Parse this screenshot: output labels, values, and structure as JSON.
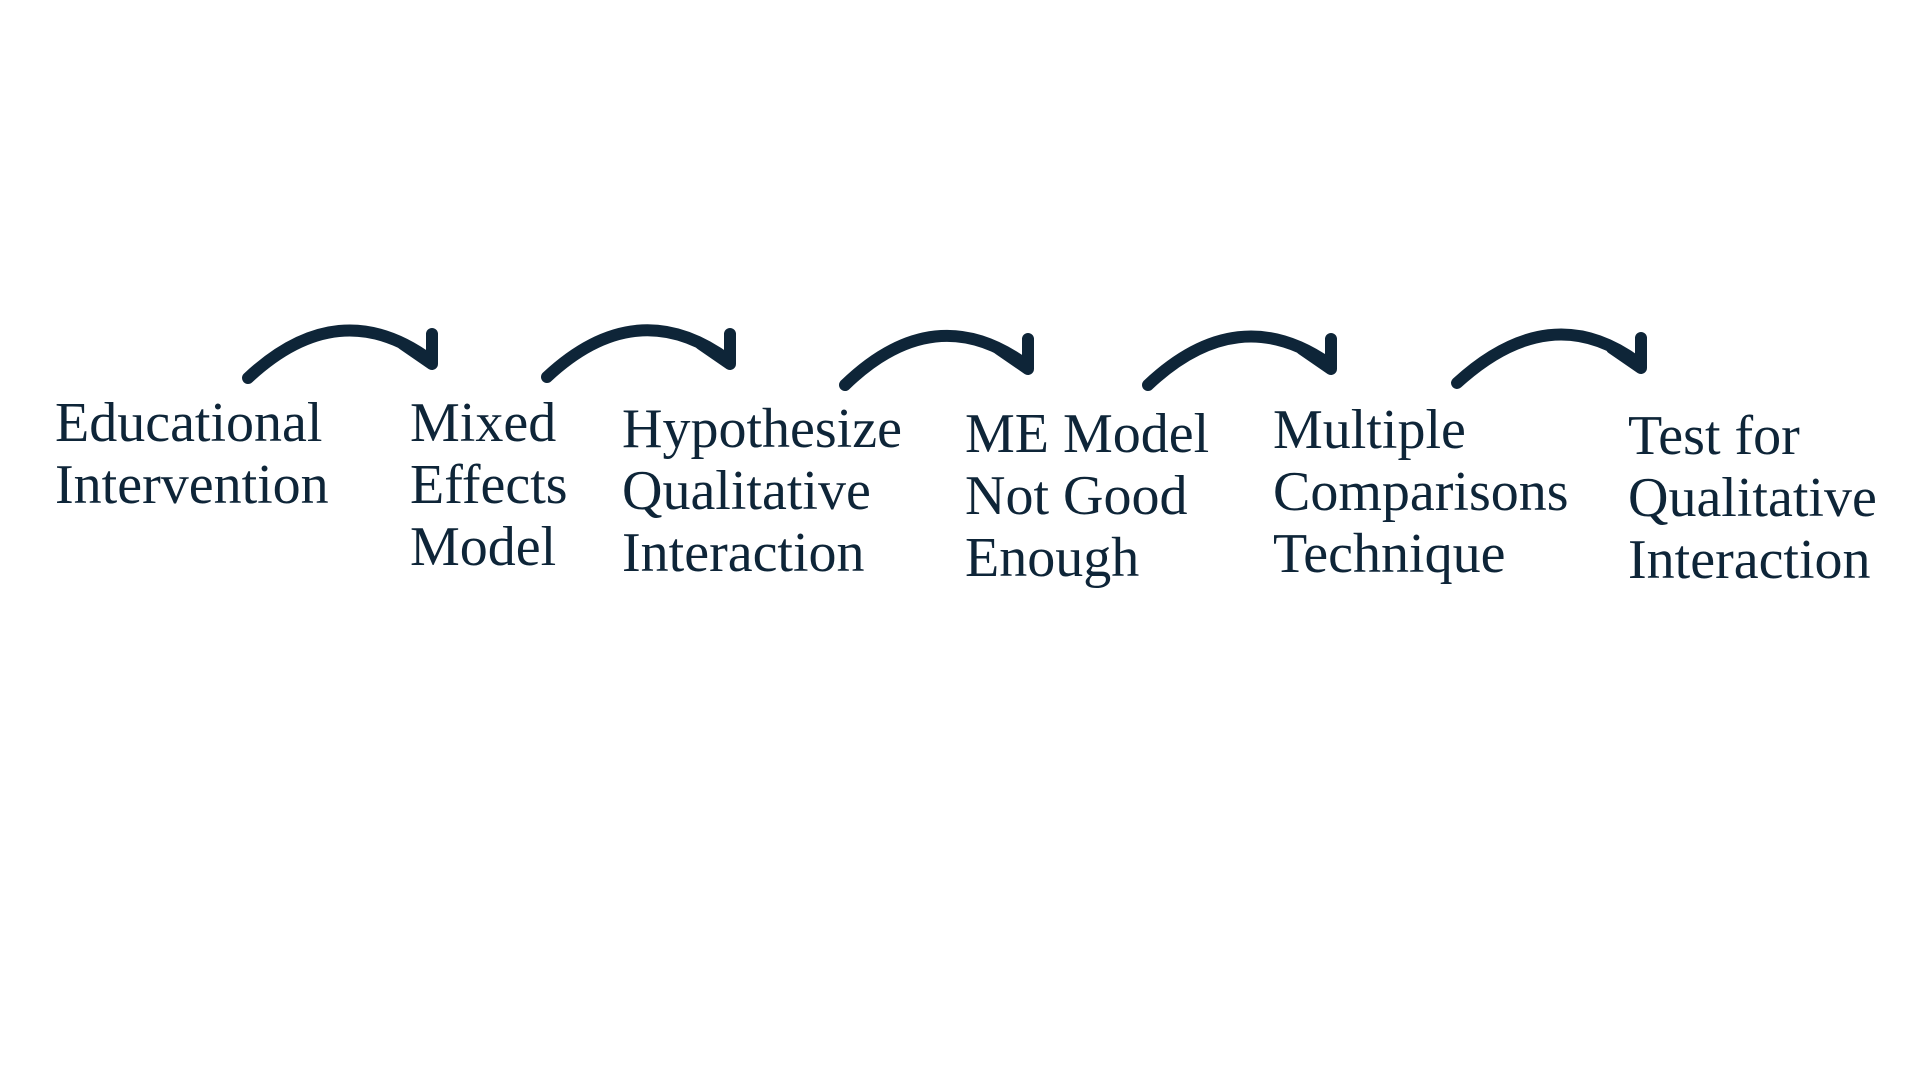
{
  "flow": {
    "steps": [
      {
        "lines": [
          "Educational",
          "Intervention"
        ]
      },
      {
        "lines": [
          "Mixed",
          "Effects",
          "Model"
        ]
      },
      {
        "lines": [
          "Hypothesize",
          "Qualitative",
          "Interaction"
        ]
      },
      {
        "lines": [
          "ME Model",
          "Not Good",
          "Enough"
        ]
      },
      {
        "lines": [
          "Multiple",
          "Comparisons",
          "Technique"
        ]
      },
      {
        "lines": [
          "Test for",
          "Qualitative",
          "Interaction"
        ]
      }
    ],
    "arrow_icon": "curved-arrow-right-icon",
    "colors": {
      "text": "#0e2538",
      "arrow": "#0e2538",
      "background": "#ffffff"
    }
  }
}
